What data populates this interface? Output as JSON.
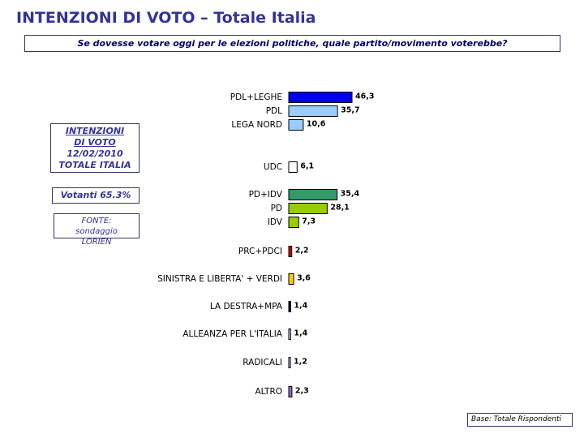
{
  "chart_data": {
    "type": "bar",
    "orientation": "horizontal",
    "title": "INTENZIONI DI VOTO – Totale Italia",
    "subtitle": "Se dovesse votare oggi per le elezioni politiche, quale partito/movimento voterebbe?",
    "annotations": [
      "INTENZIONI DI VOTO",
      "12/02/2010",
      "TOTALE ITALIA",
      "Votanti 65.3%",
      "FONTE: sondaggio LORIEN",
      "Base: Totale Rispondenti"
    ],
    "categories": [
      "PDL+LEGHE",
      "PDL",
      "LEGA NORD",
      "UDC",
      "PD+IDV",
      "PD",
      "IDV",
      "PRC+PDCI",
      "SINISTRA E LIBERTA' + VERDI",
      "LA DESTRA+MPA",
      "ALLEANZA PER L'ITALIA",
      "RADICALI",
      "ALTRO"
    ],
    "values": [
      46.3,
      35.7,
      10.6,
      6.1,
      35.4,
      28.1,
      7.3,
      2.2,
      3.6,
      1.4,
      1.4,
      1.2,
      2.3
    ],
    "value_labels": [
      "46,3",
      "35,7",
      "10,6",
      "6,1",
      "35,4",
      "28,1",
      "7,3",
      "2,2",
      "3,6",
      "1,4",
      "1,4",
      "1,2",
      "2,3"
    ],
    "colors": [
      "#0000ee",
      "#99ccff",
      "#99ccff",
      "#ffffff",
      "#339966",
      "#99cc00",
      "#99cc00",
      "#cc0000",
      "#ffcc00",
      "#000033",
      "#ccccff",
      "#ccccff",
      "#9966cc"
    ]
  }
}
